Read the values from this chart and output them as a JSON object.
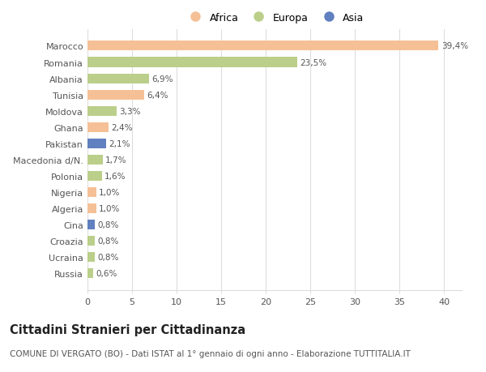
{
  "categories": [
    "Marocco",
    "Romania",
    "Albania",
    "Tunisia",
    "Moldova",
    "Ghana",
    "Pakistan",
    "Macedonia d/N.",
    "Polonia",
    "Nigeria",
    "Algeria",
    "Cina",
    "Croazia",
    "Ucraina",
    "Russia"
  ],
  "values": [
    39.4,
    23.5,
    6.9,
    6.4,
    3.3,
    2.4,
    2.1,
    1.7,
    1.6,
    1.0,
    1.0,
    0.8,
    0.8,
    0.8,
    0.6
  ],
  "labels": [
    "39,4%",
    "23,5%",
    "6,9%",
    "6,4%",
    "3,3%",
    "2,4%",
    "2,1%",
    "1,7%",
    "1,6%",
    "1,0%",
    "1,0%",
    "0,8%",
    "0,8%",
    "0,8%",
    "0,6%"
  ],
  "continent": [
    "Africa",
    "Europa",
    "Europa",
    "Africa",
    "Europa",
    "Africa",
    "Asia",
    "Europa",
    "Europa",
    "Africa",
    "Africa",
    "Asia",
    "Europa",
    "Europa",
    "Europa"
  ],
  "colors": {
    "Africa": "#F5C096",
    "Europa": "#BBCF8A",
    "Asia": "#6080C0"
  },
  "legend_labels": [
    "Africa",
    "Europa",
    "Asia"
  ],
  "xlim": [
    0,
    42
  ],
  "xticks": [
    0,
    5,
    10,
    15,
    20,
    25,
    30,
    35,
    40
  ],
  "title": "Cittadini Stranieri per Cittadinanza",
  "subtitle": "COMUNE DI VERGATO (BO) - Dati ISTAT al 1° gennaio di ogni anno - Elaborazione TUTTITALIA.IT",
  "bg_color": "#ffffff",
  "grid_color": "#dddddd",
  "bar_label_fontsize": 7.5,
  "axis_label_fontsize": 8,
  "title_fontsize": 10.5,
  "subtitle_fontsize": 7.5
}
